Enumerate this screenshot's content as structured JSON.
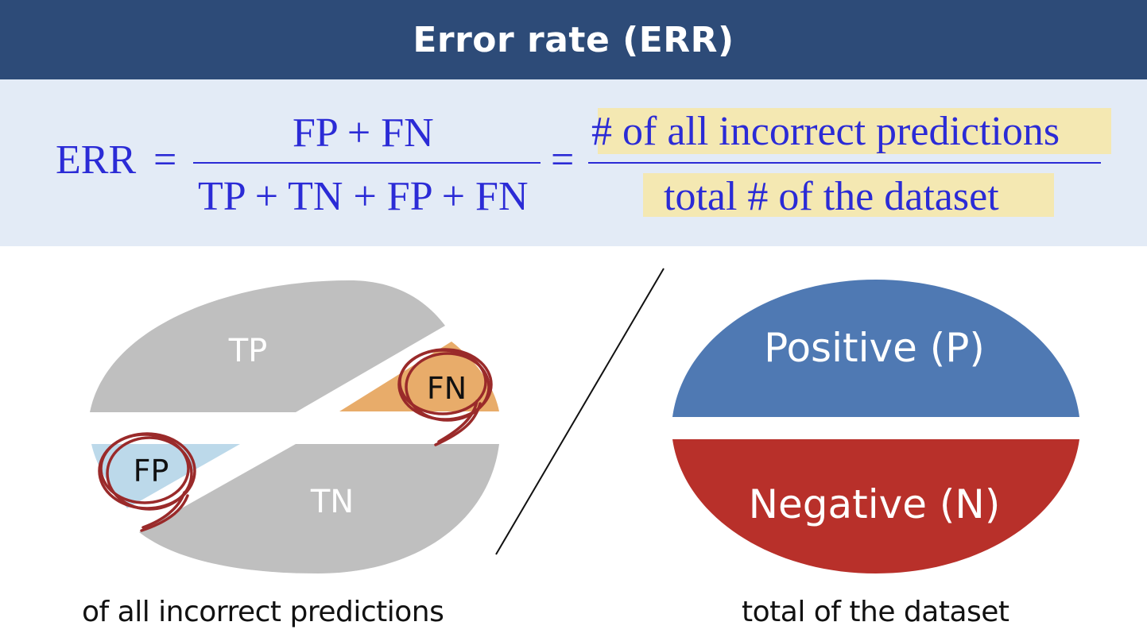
{
  "header": {
    "title": "Error rate (ERR)"
  },
  "formula": {
    "lhs": "ERR",
    "eq": "=",
    "numerator": "FP + FN",
    "denominator": "TP + TN + FP + FN",
    "eq2": "=",
    "numerator_words": "# of all incorrect predictions",
    "denominator_words": "total # of the dataset"
  },
  "left_diagram": {
    "tp_label": "TP",
    "fn_label": "FN",
    "fp_label": "FP",
    "tn_label": "TN",
    "caption": "of all incorrect predictions"
  },
  "right_diagram": {
    "positive_label": "Positive (P)",
    "negative_label": "Negative (N)",
    "caption": "total  of the dataset"
  },
  "colors": {
    "header_bg": "#2d4b78",
    "formula_bg": "#e3ebf6",
    "formula_text": "#2b2bd6",
    "highlight": "#f4e8b2",
    "slice_gray": "#bfbfbf",
    "fn_orange": "#e8ac6a",
    "fp_blue": "#bcd9ea",
    "scribble": "#9a2a2a",
    "positive": "#4f79b3",
    "negative": "#b8302a"
  }
}
